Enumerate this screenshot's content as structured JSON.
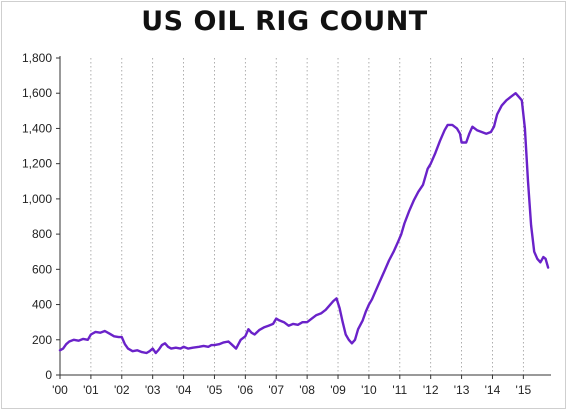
{
  "chart_data": {
    "type": "line",
    "title": "US OIL RIG COUNT",
    "xlabel": "",
    "ylabel": "",
    "xlim": [
      2000,
      2015.83
    ],
    "ylim": [
      0,
      1800
    ],
    "grid": {
      "vertical": true,
      "horizontal": false
    },
    "line_color": "#6a22c9",
    "y_ticks": [
      {
        "value": 0,
        "label": "0"
      },
      {
        "value": 200,
        "label": "200"
      },
      {
        "value": 400,
        "label": "400"
      },
      {
        "value": 600,
        "label": "600"
      },
      {
        "value": 800,
        "label": "800"
      },
      {
        "value": 1000,
        "label": "1,000"
      },
      {
        "value": 1200,
        "label": "1,200"
      },
      {
        "value": 1400,
        "label": "1,400"
      },
      {
        "value": 1600,
        "label": "1,600"
      },
      {
        "value": 1800,
        "label": "1,800"
      }
    ],
    "x_ticks": [
      {
        "value": 2000,
        "label": "'00"
      },
      {
        "value": 2001,
        "label": "'01"
      },
      {
        "value": 2002,
        "label": "'02"
      },
      {
        "value": 2003,
        "label": "'03"
      },
      {
        "value": 2004,
        "label": "'04"
      },
      {
        "value": 2005,
        "label": "'05"
      },
      {
        "value": 2006,
        "label": "'06"
      },
      {
        "value": 2007,
        "label": "'07"
      },
      {
        "value": 2008,
        "label": "'08"
      },
      {
        "value": 2009,
        "label": "'09"
      },
      {
        "value": 2010,
        "label": "'10"
      },
      {
        "value": 2011,
        "label": "'11"
      },
      {
        "value": 2012,
        "label": "'12"
      },
      {
        "value": 2013,
        "label": "'13"
      },
      {
        "value": 2014,
        "label": "'14"
      },
      {
        "value": 2015,
        "label": "'15"
      }
    ],
    "series": [
      {
        "points": [
          [
            2000.0,
            140
          ],
          [
            2000.1,
            150
          ],
          [
            2000.2,
            175
          ],
          [
            2000.3,
            190
          ],
          [
            2000.45,
            200
          ],
          [
            2000.6,
            195
          ],
          [
            2000.75,
            205
          ],
          [
            2000.9,
            200
          ],
          [
            2001.0,
            230
          ],
          [
            2001.15,
            245
          ],
          [
            2001.3,
            240
          ],
          [
            2001.45,
            250
          ],
          [
            2001.6,
            235
          ],
          [
            2001.75,
            220
          ],
          [
            2001.9,
            215
          ],
          [
            2002.0,
            215
          ],
          [
            2002.1,
            175
          ],
          [
            2002.2,
            150
          ],
          [
            2002.35,
            135
          ],
          [
            2002.5,
            140
          ],
          [
            2002.65,
            130
          ],
          [
            2002.8,
            125
          ],
          [
            2002.9,
            135
          ],
          [
            2003.0,
            150
          ],
          [
            2003.1,
            125
          ],
          [
            2003.2,
            145
          ],
          [
            2003.3,
            170
          ],
          [
            2003.4,
            180
          ],
          [
            2003.5,
            160
          ],
          [
            2003.6,
            150
          ],
          [
            2003.75,
            155
          ],
          [
            2003.9,
            150
          ],
          [
            2004.0,
            160
          ],
          [
            2004.15,
            150
          ],
          [
            2004.3,
            155
          ],
          [
            2004.5,
            160
          ],
          [
            2004.65,
            165
          ],
          [
            2004.8,
            160
          ],
          [
            2004.9,
            170
          ],
          [
            2005.0,
            170
          ],
          [
            2005.15,
            175
          ],
          [
            2005.3,
            185
          ],
          [
            2005.45,
            190
          ],
          [
            2005.55,
            175
          ],
          [
            2005.7,
            150
          ],
          [
            2005.85,
            200
          ],
          [
            2006.0,
            220
          ],
          [
            2006.1,
            260
          ],
          [
            2006.2,
            240
          ],
          [
            2006.3,
            230
          ],
          [
            2006.45,
            255
          ],
          [
            2006.6,
            270
          ],
          [
            2006.75,
            280
          ],
          [
            2006.9,
            290
          ],
          [
            2007.0,
            320
          ],
          [
            2007.1,
            310
          ],
          [
            2007.25,
            300
          ],
          [
            2007.4,
            280
          ],
          [
            2007.55,
            290
          ],
          [
            2007.7,
            285
          ],
          [
            2007.85,
            300
          ],
          [
            2008.0,
            300
          ],
          [
            2008.15,
            320
          ],
          [
            2008.3,
            340
          ],
          [
            2008.45,
            350
          ],
          [
            2008.6,
            370
          ],
          [
            2008.75,
            400
          ],
          [
            2008.85,
            420
          ],
          [
            2008.95,
            435
          ],
          [
            2009.05,
            380
          ],
          [
            2009.15,
            300
          ],
          [
            2009.25,
            230
          ],
          [
            2009.35,
            200
          ],
          [
            2009.45,
            180
          ],
          [
            2009.55,
            200
          ],
          [
            2009.65,
            260
          ],
          [
            2009.8,
            310
          ],
          [
            2009.9,
            360
          ],
          [
            2010.0,
            400
          ],
          [
            2010.1,
            430
          ],
          [
            2010.2,
            470
          ],
          [
            2010.35,
            530
          ],
          [
            2010.5,
            590
          ],
          [
            2010.65,
            650
          ],
          [
            2010.8,
            700
          ],
          [
            2010.95,
            760
          ],
          [
            2011.05,
            800
          ],
          [
            2011.15,
            860
          ],
          [
            2011.3,
            930
          ],
          [
            2011.45,
            990
          ],
          [
            2011.6,
            1040
          ],
          [
            2011.75,
            1080
          ],
          [
            2011.9,
            1170
          ],
          [
            2012.0,
            1200
          ],
          [
            2012.15,
            1260
          ],
          [
            2012.3,
            1330
          ],
          [
            2012.45,
            1390
          ],
          [
            2012.55,
            1420
          ],
          [
            2012.7,
            1420
          ],
          [
            2012.85,
            1400
          ],
          [
            2012.95,
            1370
          ],
          [
            2013.0,
            1320
          ],
          [
            2013.15,
            1320
          ],
          [
            2013.25,
            1370
          ],
          [
            2013.35,
            1410
          ],
          [
            2013.5,
            1390
          ],
          [
            2013.65,
            1380
          ],
          [
            2013.8,
            1370
          ],
          [
            2013.95,
            1380
          ],
          [
            2014.05,
            1410
          ],
          [
            2014.15,
            1480
          ],
          [
            2014.3,
            1530
          ],
          [
            2014.45,
            1560
          ],
          [
            2014.6,
            1580
          ],
          [
            2014.75,
            1600
          ],
          [
            2014.85,
            1580
          ],
          [
            2014.95,
            1560
          ],
          [
            2015.05,
            1400
          ],
          [
            2015.15,
            1100
          ],
          [
            2015.25,
            850
          ],
          [
            2015.35,
            700
          ],
          [
            2015.45,
            660
          ],
          [
            2015.55,
            640
          ],
          [
            2015.65,
            670
          ],
          [
            2015.72,
            660
          ],
          [
            2015.8,
            610
          ]
        ]
      }
    ]
  }
}
